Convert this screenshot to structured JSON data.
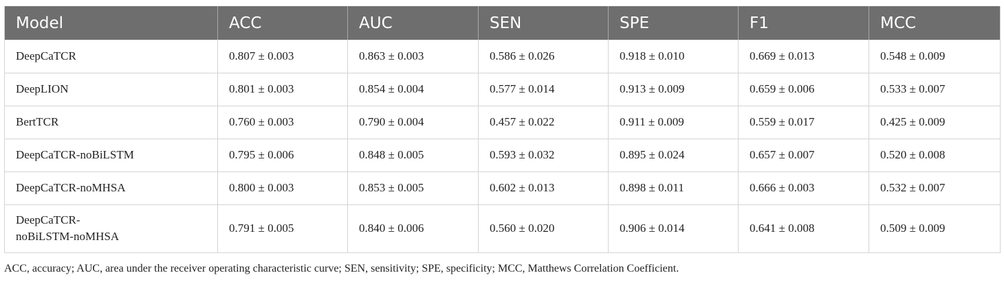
{
  "table": {
    "headers": [
      "Model",
      "ACC",
      "AUC",
      "SEN",
      "SPE",
      "F1",
      "MCC"
    ],
    "rows": [
      {
        "model": "DeepCaTCR",
        "acc": "0.807 ± 0.003",
        "auc": "0.863 ± 0.003",
        "sen": "0.586 ± 0.026",
        "spe": "0.918 ± 0.010",
        "f1": "0.669 ± 0.013",
        "mcc": "0.548 ± 0.009"
      },
      {
        "model": "DeepLION",
        "acc": "0.801 ± 0.003",
        "auc": "0.854 ± 0.004",
        "sen": "0.577 ± 0.014",
        "spe": "0.913 ± 0.009",
        "f1": "0.659 ± 0.006",
        "mcc": "0.533 ± 0.007"
      },
      {
        "model": "BertTCR",
        "acc": "0.760 ± 0.003",
        "auc": "0.790 ± 0.004",
        "sen": "0.457 ± 0.022",
        "spe": "0.911 ± 0.009",
        "f1": "0.559 ± 0.017",
        "mcc": "0.425 ± 0.009"
      },
      {
        "model": "DeepCaTCR-noBiLSTM",
        "acc": "0.795 ± 0.006",
        "auc": "0.848 ± 0.005",
        "sen": "0.593 ± 0.032",
        "spe": "0.895 ± 0.024",
        "f1": "0.657 ± 0.007",
        "mcc": "0.520 ± 0.008"
      },
      {
        "model": "DeepCaTCR-noMHSA",
        "acc": "0.800 ± 0.003",
        "auc": "0.853 ± 0.005",
        "sen": "0.602 ± 0.013",
        "spe": "0.898 ± 0.011",
        "f1": "0.666 ± 0.003",
        "mcc": "0.532 ± 0.007"
      },
      {
        "model_line1": "DeepCaTCR-",
        "model_line2": "noBiLSTM-noMHSA",
        "acc": "0.791 ± 0.005",
        "auc": "0.840 ± 0.006",
        "sen": "0.560 ± 0.020",
        "spe": "0.906 ± 0.014",
        "f1": "0.641 ± 0.008",
        "mcc": "0.509 ± 0.009"
      }
    ]
  },
  "footnote": "ACC, accuracy; AUC, area under the receiver operating characteristic curve; SEN, sensitivity; SPE, specificity; MCC, Matthews Correlation Coefficient.",
  "colors": {
    "header_bg": "#6e6e6e",
    "header_text": "#ffffff",
    "grid_line": "#d4d4d4"
  }
}
